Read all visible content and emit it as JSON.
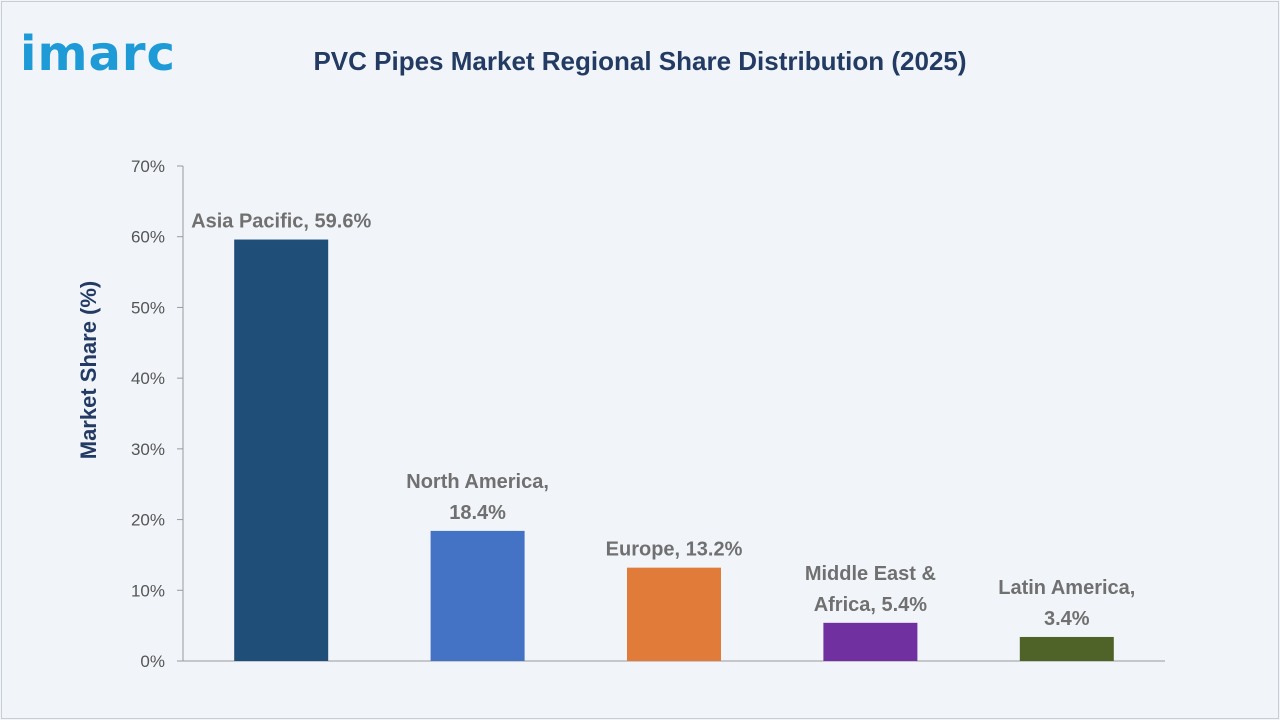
{
  "logo": {
    "text": "imarc",
    "color": "#1e9bd7"
  },
  "chart_data": {
    "type": "bar",
    "title": "PVC Pipes Market Regional Share Distribution (2025)",
    "ylabel": "Market Share (%)",
    "xlabel": "",
    "ylim": [
      0,
      70
    ],
    "yticks": [
      "0%",
      "10%",
      "20%",
      "30%",
      "40%",
      "50%",
      "60%",
      "70%"
    ],
    "grid": false,
    "categories": [
      "Asia Pacific",
      "North America",
      "Europe",
      "Middle East & Africa",
      "Latin America"
    ],
    "values": [
      59.6,
      18.4,
      13.2,
      5.4,
      3.4
    ],
    "data_labels": [
      [
        "Asia Pacific, 59.6%"
      ],
      [
        "North America,",
        "18.4%"
      ],
      [
        "Europe, 13.2%"
      ],
      [
        "Middle East &",
        "Africa, 5.4%"
      ],
      [
        "Latin America,",
        "3.4%"
      ]
    ],
    "colors": [
      "#1f4e79",
      "#4472c4",
      "#e07b39",
      "#7030a0",
      "#4f6228"
    ]
  }
}
